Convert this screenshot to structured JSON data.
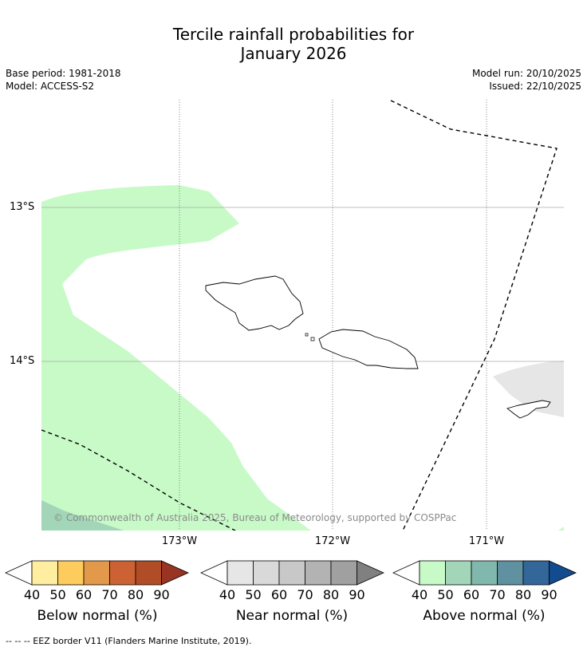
{
  "title_line1": "Tercile rainfall probabilities for",
  "title_line2": "January 2026",
  "base_period": "Base period: 1981-2018",
  "model": "Model: ACCESS-S2",
  "model_run": "Model run: 20/10/2025",
  "issued": "Issued: 22/10/2025",
  "lat_labels": [
    "13°S",
    "14°S"
  ],
  "lon_labels": [
    "173°W",
    "172°W",
    "171°W"
  ],
  "copyright": "© Commonwealth of Australia 2025, Bureau of Meteorology, supported by COSPPac",
  "colorbars": [
    {
      "label": "Below normal (%)",
      "ticks": [
        "40",
        "50",
        "60",
        "70",
        "80",
        "90"
      ],
      "colors": [
        "#ffffff",
        "#ffeda0",
        "#fecc5c",
        "#e3994a",
        "#cc6233",
        "#b14d26",
        "#993322"
      ]
    },
    {
      "label": "Near normal (%)",
      "ticks": [
        "40",
        "50",
        "60",
        "70",
        "80",
        "90"
      ],
      "colors": [
        "#ffffff",
        "#e6e6e6",
        "#d9d9d9",
        "#c8c8c8",
        "#b3b3b3",
        "#a0a0a0",
        "#808080"
      ]
    },
    {
      "label": "Above normal (%)",
      "ticks": [
        "40",
        "50",
        "60",
        "70",
        "80",
        "90"
      ],
      "colors": [
        "#ffffff",
        "#c8fac8",
        "#a3d6b8",
        "#80b8ae",
        "#5f91a0",
        "#336699",
        "#124b8e"
      ]
    }
  ],
  "map_colors": {
    "above_40": "#c8fac8",
    "above_50": "#a3d6b8",
    "near_40": "#e6e6e6"
  },
  "footnote": "--  --  -- EEZ border V11 (Flanders Marine Institute, 2019)."
}
